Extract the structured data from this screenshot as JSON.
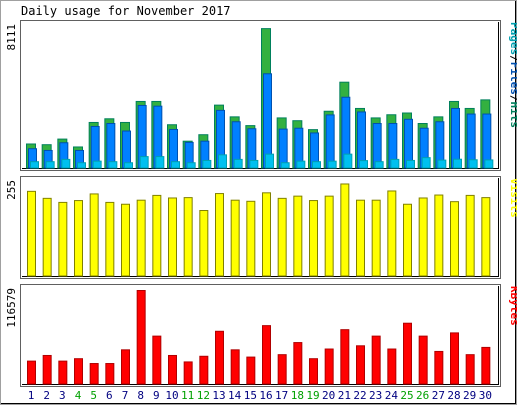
{
  "title": "Daily usage for November 2017",
  "colors": {
    "hits": "#00805c",
    "hits_fill": "#33b040",
    "files": "#0050b0",
    "files_fill": "#0080ff",
    "pages": "#00a0b0",
    "pages_fill": "#00c0f0",
    "visits": "#808000",
    "visits_fill": "#ffff00",
    "kbytes": "#b00000",
    "kbytes_fill": "#ff0000",
    "weekend_label": "#00a000",
    "weekday_label": "#000080"
  },
  "chart_data": [
    {
      "type": "bar",
      "panel": "hits-files-pages",
      "legend": [
        "Pages",
        "Files",
        "Hits"
      ],
      "y_max_label": "8111",
      "ylim": [
        0,
        8111
      ],
      "categories": [
        "1",
        "2",
        "3",
        "4",
        "5",
        "6",
        "7",
        "8",
        "9",
        "10",
        "11",
        "12",
        "13",
        "14",
        "15",
        "16",
        "17",
        "18",
        "19",
        "20",
        "21",
        "22",
        "23",
        "24",
        "25",
        "26",
        "27",
        "28",
        "29",
        "30"
      ],
      "weekend": [
        4,
        5,
        11,
        12,
        18,
        19,
        25,
        26
      ],
      "series": [
        {
          "name": "Hits",
          "values": [
            1400,
            1360,
            1680,
            1230,
            2630,
            2840,
            2630,
            3830,
            3830,
            2500,
            1560,
            1930,
            3620,
            2950,
            2450,
            7990,
            2890,
            2730,
            2220,
            3270,
            4930,
            3430,
            2890,
            3070,
            3170,
            2570,
            2950,
            3830,
            3430,
            3920
          ]
        },
        {
          "name": "Files",
          "values": [
            1130,
            1030,
            1470,
            1030,
            2400,
            2570,
            2140,
            3600,
            3560,
            2230,
            1490,
            1560,
            3320,
            2670,
            2270,
            5410,
            2250,
            2300,
            2030,
            3060,
            4070,
            3230,
            2570,
            2570,
            2810,
            2300,
            2670,
            3430,
            3110,
            3110
          ]
        },
        {
          "name": "Pages",
          "values": [
            390,
            390,
            520,
            330,
            420,
            390,
            330,
            680,
            680,
            390,
            330,
            460,
            780,
            520,
            460,
            820,
            330,
            420,
            390,
            420,
            820,
            450,
            390,
            520,
            460,
            620,
            480,
            530,
            500,
            490
          ]
        }
      ]
    },
    {
      "type": "bar",
      "panel": "visits",
      "legend": [
        "Visits"
      ],
      "y_max_label": "255",
      "ylim": [
        0,
        255
      ],
      "categories": [
        "1",
        "2",
        "3",
        "4",
        "5",
        "6",
        "7",
        "8",
        "9",
        "10",
        "11",
        "12",
        "13",
        "14",
        "15",
        "16",
        "17",
        "18",
        "19",
        "20",
        "21",
        "22",
        "23",
        "24",
        "25",
        "26",
        "27",
        "28",
        "29",
        "30"
      ],
      "series": [
        {
          "name": "Visits",
          "values": [
            231,
            212,
            201,
            206,
            224,
            201,
            196,
            207,
            220,
            213,
            214,
            179,
            225,
            207,
            204,
            227,
            212,
            218,
            206,
            218,
            251,
            207,
            207,
            232,
            196,
            213,
            221,
            203,
            220,
            214
          ]
        }
      ]
    },
    {
      "type": "bar",
      "panel": "kbytes",
      "legend": [
        "KBytes"
      ],
      "y_max_label": "116579",
      "ylim": [
        0,
        116579
      ],
      "categories": [
        "1",
        "2",
        "3",
        "4",
        "5",
        "6",
        "7",
        "8",
        "9",
        "10",
        "11",
        "12",
        "13",
        "14",
        "15",
        "16",
        "17",
        "18",
        "19",
        "20",
        "21",
        "22",
        "23",
        "24",
        "25",
        "26",
        "27",
        "28",
        "29",
        "30"
      ],
      "series": [
        {
          "name": "KBytes",
          "values": [
            29000,
            36000,
            29000,
            32000,
            26000,
            26000,
            43000,
            116579,
            60000,
            36000,
            28000,
            35000,
            66000,
            43000,
            34000,
            73000,
            37000,
            52000,
            32000,
            44000,
            68000,
            48000,
            60000,
            44000,
            76000,
            60000,
            41000,
            64000,
            37000,
            46000
          ]
        }
      ]
    }
  ]
}
